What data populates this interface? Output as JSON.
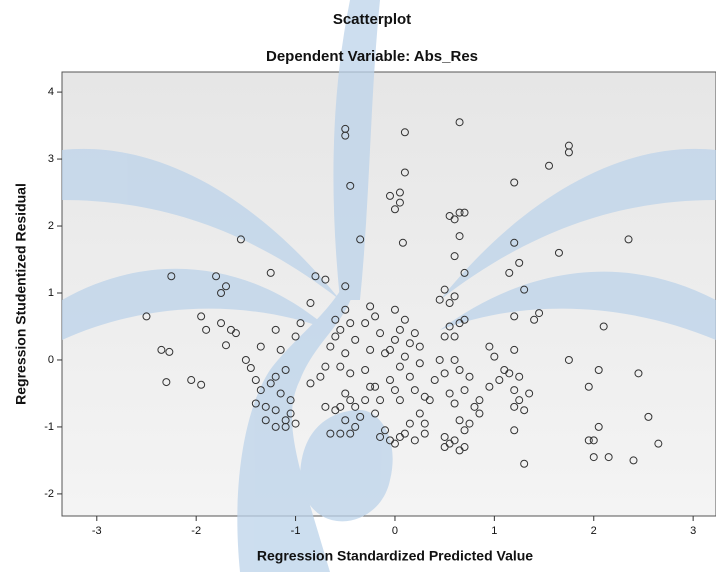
{
  "chart_data": {
    "type": "scatter",
    "title": "Scatterplot",
    "subtitle": "Dependent Variable: Abs_Res",
    "x_label": "Regression Standardized Predicted Value",
    "y_label": "Regression Studentized Residual",
    "xlim": [
      -3.35,
      3.23
    ],
    "ylim": [
      -2.33,
      4.3
    ],
    "xticks": [
      -3,
      -2,
      -1,
      0,
      1,
      2,
      3
    ],
    "yticks": [
      -2,
      -1,
      0,
      1,
      2,
      3,
      4
    ],
    "marker_color": "#333333",
    "x": [
      -2.5,
      -2.25,
      -2.35,
      -2.27,
      -2.3,
      -2.05,
      -1.95,
      -1.8,
      -1.75,
      -1.7,
      -1.75,
      -1.95,
      -1.9,
      -1.65,
      -1.6,
      -1.7,
      -1.55,
      -1.5,
      -1.45,
      -1.4,
      -1.4,
      -1.35,
      -1.3,
      -1.3,
      -1.25,
      -1.2,
      -1.15,
      -1.2,
      -1.1,
      -1.1,
      -1.2,
      -1.15,
      -1.05,
      -1.05,
      -1.0,
      -1.25,
      -1.2,
      -1.35,
      -1.1,
      -1.0,
      -0.95,
      -0.85,
      -0.8,
      -0.7,
      -0.85,
      -0.75,
      -0.7,
      -0.65,
      -0.6,
      -0.55,
      -0.5,
      -0.5,
      -0.45,
      -0.35,
      -0.5,
      -0.6,
      -0.5,
      -0.45,
      -0.4,
      -0.5,
      -0.55,
      -0.45,
      -0.5,
      -0.55,
      -0.6,
      -0.7,
      -0.65,
      -0.55,
      -0.45,
      -0.5,
      -0.4,
      -0.35,
      -0.4,
      -0.45,
      -0.3,
      -0.25,
      -0.3,
      -0.25,
      -0.2,
      -0.15,
      -0.1,
      -0.2,
      -0.15,
      -0.2,
      -0.15,
      -0.1,
      -0.05,
      0.0,
      0.05,
      0.1,
      0.15,
      0.05,
      0.0,
      -0.05,
      0.05,
      0.1,
      0.15,
      0.0,
      -0.05,
      0.05,
      0.1,
      0.0,
      -0.05,
      0.05,
      0.05,
      0.0,
      0.1,
      0.1,
      0.08,
      0.2,
      0.25,
      0.15,
      0.2,
      0.25,
      0.3,
      0.3,
      0.2,
      0.35,
      0.4,
      0.45,
      0.5,
      0.45,
      0.5,
      0.55,
      0.6,
      0.65,
      0.7,
      0.6,
      0.65,
      0.7,
      0.6,
      0.55,
      0.55,
      0.6,
      0.65,
      0.7,
      0.5,
      0.55,
      0.6,
      0.65,
      0.7,
      0.6,
      0.55,
      0.5,
      0.5,
      0.65,
      0.7,
      0.75,
      0.8,
      0.85,
      0.7,
      0.65,
      0.6,
      0.75,
      0.65,
      0.95,
      1.0,
      1.1,
      1.15,
      1.2,
      1.25,
      1.2,
      1.2,
      1.25,
      1.3,
      1.35,
      1.2,
      1.2,
      1.15,
      1.2,
      1.2,
      1.25,
      1.3,
      1.3,
      1.4,
      1.45,
      1.55,
      1.65,
      1.75,
      1.75,
      1.75,
      1.95,
      1.95,
      2.0,
      2.0,
      2.05,
      2.05,
      2.1,
      2.15,
      2.35,
      2.4,
      2.45,
      2.55,
      2.65,
      1.05,
      0.95,
      0.85,
      -0.25,
      -0.3,
      0.25,
      0.3
    ],
    "y": [
      0.65,
      1.25,
      0.15,
      0.12,
      -0.33,
      -0.3,
      -0.37,
      1.25,
      1.0,
      1.1,
      0.55,
      0.65,
      0.45,
      0.45,
      0.4,
      0.22,
      1.8,
      0.0,
      -0.12,
      -0.3,
      -0.65,
      -0.45,
      -0.7,
      -0.9,
      -0.35,
      -0.25,
      -0.5,
      -0.75,
      -0.9,
      -1.0,
      -1.0,
      0.15,
      -0.6,
      -0.8,
      -0.95,
      1.3,
      0.45,
      0.2,
      -0.15,
      0.35,
      0.55,
      0.85,
      1.25,
      1.2,
      -0.35,
      -0.25,
      -0.1,
      0.2,
      0.35,
      0.45,
      3.45,
      3.35,
      2.6,
      1.8,
      1.1,
      0.6,
      0.75,
      0.55,
      0.3,
      0.1,
      -0.1,
      -0.2,
      -0.5,
      -0.7,
      -0.75,
      -0.7,
      -1.1,
      -1.1,
      -1.1,
      -0.9,
      -0.7,
      -0.85,
      -1.0,
      -0.6,
      -0.15,
      0.15,
      0.55,
      0.8,
      0.65,
      0.4,
      0.1,
      -0.4,
      -0.6,
      -0.8,
      -1.15,
      -1.05,
      -1.2,
      -1.25,
      -1.15,
      -1.1,
      -0.95,
      -0.6,
      -0.45,
      -0.3,
      -0.1,
      0.05,
      0.25,
      0.3,
      0.15,
      0.45,
      0.6,
      0.75,
      2.45,
      2.5,
      2.35,
      2.25,
      2.8,
      3.4,
      1.75,
      0.4,
      0.2,
      -0.25,
      -0.45,
      -0.8,
      -0.95,
      -1.1,
      -1.2,
      -0.6,
      -0.3,
      0.0,
      0.35,
      0.9,
      1.05,
      2.15,
      2.1,
      2.2,
      2.2,
      1.55,
      1.85,
      1.3,
      0.95,
      0.85,
      0.5,
      0.35,
      0.55,
      0.6,
      -0.2,
      -0.5,
      -0.65,
      -0.9,
      -1.05,
      -1.2,
      -1.25,
      -1.3,
      -1.15,
      -1.35,
      -1.3,
      -0.95,
      -0.7,
      -0.8,
      -0.45,
      -0.15,
      0.0,
      -0.25,
      3.55,
      0.2,
      0.05,
      -0.15,
      -0.2,
      -0.45,
      -0.25,
      -1.05,
      -0.7,
      -0.6,
      -0.75,
      -0.5,
      0.15,
      0.65,
      1.3,
      1.75,
      2.65,
      1.45,
      1.05,
      -1.55,
      0.6,
      0.7,
      2.9,
      1.6,
      3.2,
      3.1,
      0.0,
      -0.4,
      -1.2,
      -1.2,
      -1.45,
      -1.0,
      -0.15,
      0.5,
      -1.45,
      1.8,
      -1.5,
      -0.2,
      -0.85,
      -1.25,
      -0.3,
      -0.4,
      -0.6,
      -0.4,
      -0.6,
      -0.05,
      -0.55
    ]
  }
}
